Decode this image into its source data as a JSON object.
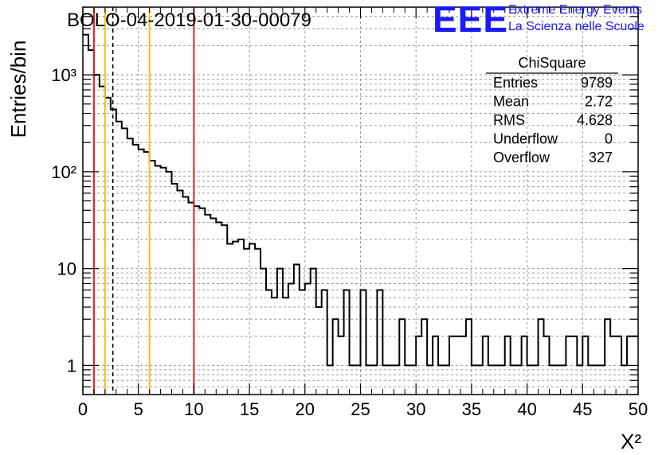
{
  "title": "BOLO-04-2019-01-30-00079",
  "logo": {
    "mark": "EEE",
    "line1": "Extreme Energy Events",
    "line2": "La Scienza nelle Scuole",
    "color": "#1a1aff"
  },
  "stats": {
    "name": "ChiSquare",
    "rows": [
      {
        "label": "Entries",
        "value": "9789"
      },
      {
        "label": "Mean",
        "value": "2.72"
      },
      {
        "label": "RMS",
        "value": "4.628"
      },
      {
        "label": "Underflow",
        "value": "0"
      },
      {
        "label": "Overflow",
        "value": "327"
      }
    ]
  },
  "chart_data": {
    "type": "histogram",
    "xlabel": "X²",
    "ylabel": "Entries/bin",
    "xlim": [
      0,
      50
    ],
    "ylim": [
      0.5,
      5000
    ],
    "yscale": "log",
    "bin_width": 0.5,
    "grid": true,
    "x_ticks": [
      "0",
      "5",
      "10",
      "15",
      "20",
      "25",
      "30",
      "35",
      "40",
      "45",
      "50"
    ],
    "y_ticks": [
      {
        "value": 1,
        "label": "1"
      },
      {
        "value": 10,
        "label": "10"
      },
      {
        "value": 100,
        "label": "10²"
      },
      {
        "value": 1000,
        "label": "10³"
      }
    ],
    "bin_values": [
      2600,
      1800,
      1000,
      760,
      580,
      440,
      330,
      280,
      220,
      190,
      170,
      160,
      130,
      115,
      110,
      100,
      75,
      64,
      55,
      48,
      44,
      42,
      36,
      33,
      30,
      28,
      18,
      19,
      20,
      16,
      18,
      16,
      10,
      6,
      5,
      10,
      5,
      7,
      11,
      6,
      7,
      10,
      4,
      6,
      1,
      3,
      2,
      6,
      1,
      1,
      6,
      1,
      1,
      6,
      1,
      1,
      1,
      3,
      1,
      1,
      2,
      3,
      1,
      2,
      1,
      1,
      2,
      2,
      2,
      3,
      1,
      1,
      2,
      1,
      1,
      1,
      2,
      1,
      1,
      2,
      1,
      1,
      3,
      2,
      1,
      1,
      1,
      2,
      2,
      1,
      2,
      1,
      1,
      1,
      3,
      2,
      2,
      1,
      2,
      2
    ],
    "vertical_lines": [
      {
        "x": 1,
        "color": "#e8201e",
        "style": "solid"
      },
      {
        "x": 2,
        "color": "#f2c018",
        "style": "solid"
      },
      {
        "x": 2.7,
        "color": "#000000",
        "style": "dashed"
      },
      {
        "x": 6,
        "color": "#f2c018",
        "style": "solid"
      },
      {
        "x": 10,
        "color": "#e8201e",
        "style": "solid"
      }
    ]
  }
}
